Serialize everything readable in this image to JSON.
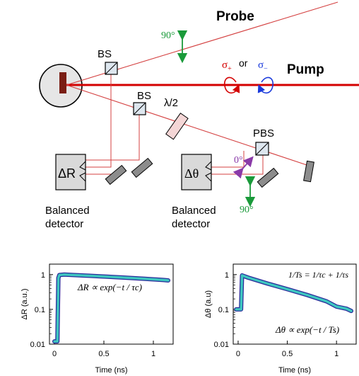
{
  "diagram": {
    "probe_label": "Probe",
    "pump_label": "Pump",
    "bs_top_label": "BS",
    "bs_mid_label": "BS",
    "half_wave_label": "λ/2",
    "pbs_label": "PBS",
    "angle_90_top": "90°",
    "angle_0": "0°",
    "angle_90_bottom": "90°",
    "sigma_plus": "σ",
    "sigma_plus_sub": "+",
    "or_text": "or",
    "sigma_minus": "σ",
    "sigma_minus_sub": "−",
    "det_left_symbol": "ΔR",
    "det_right_symbol": "Δθ",
    "det_left_label_1": "Balanced",
    "det_left_label_2": "detector",
    "det_right_label_1": "Balanced",
    "det_right_label_2": "detector"
  },
  "colors": {
    "pump_beam": "#d40000",
    "probe_beam": "#d44040",
    "green_arrow": "#1a9a3a",
    "purple_arrow": "#8a3aa8",
    "sigma_plus": "#d40000",
    "sigma_minus": "#1a3adc",
    "curve_fill": "#3ec6c0",
    "curve_edge": "#2a2a9a"
  },
  "chart_data": [
    {
      "type": "line",
      "scale": "log-y",
      "xlabel": "Time (ns)",
      "ylabel": "ΔR (a.u.)",
      "x_ticks": [
        "0",
        "0.5",
        "1"
      ],
      "y_ticks": [
        "0.01",
        "0.1",
        "1"
      ],
      "xlim": [
        -0.05,
        1.2
      ],
      "ylim": [
        0.01,
        2
      ],
      "annotation": "ΔR ∝ exp(−t / τc)",
      "series": [
        {
          "x": [
            0.0,
            0.03,
            0.04,
            0.05,
            0.1,
            0.3,
            0.5,
            0.7,
            0.9,
            1.1,
            1.15
          ],
          "y": [
            0.012,
            0.012,
            0.8,
            0.97,
            1.0,
            0.94,
            0.88,
            0.82,
            0.76,
            0.7,
            0.68
          ]
        }
      ]
    },
    {
      "type": "line",
      "scale": "log-y",
      "xlabel": "Time (ns)",
      "ylabel": "Δθ (a.u)",
      "x_ticks": [
        "0",
        "0.5",
        "1"
      ],
      "y_ticks": [
        "0.01",
        "0.1",
        "1"
      ],
      "xlim": [
        -0.05,
        1.2
      ],
      "ylim": [
        0.01,
        2
      ],
      "annotation": "Δθ ∝ exp(−t / Ts)",
      "formula": "1/Ts = 1/τc + 1/τs",
      "series": [
        {
          "x": [
            -0.02,
            0.02,
            0.03,
            0.04,
            0.1,
            0.3,
            0.5,
            0.7,
            0.9,
            1.0,
            1.1,
            1.15
          ],
          "y": [
            0.1,
            0.1,
            0.1,
            0.95,
            0.82,
            0.55,
            0.38,
            0.26,
            0.17,
            0.12,
            0.105,
            0.09
          ]
        }
      ]
    }
  ]
}
